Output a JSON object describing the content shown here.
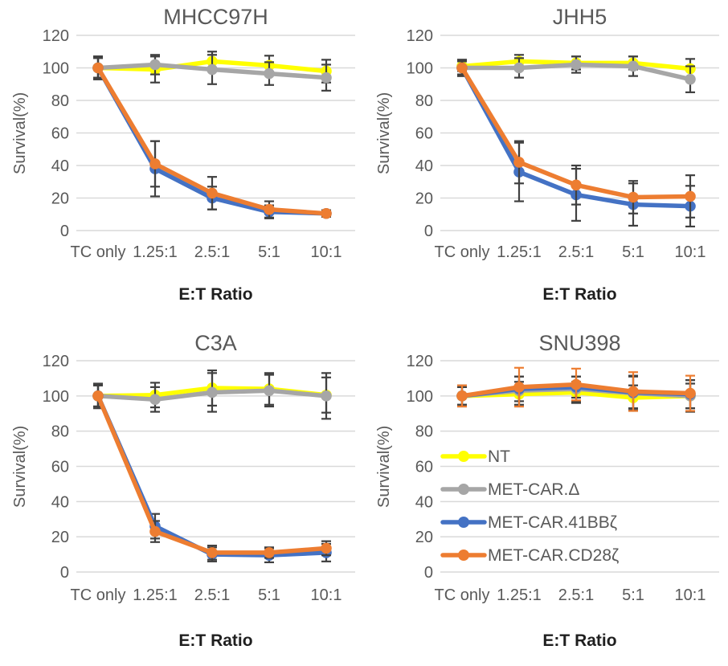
{
  "axes": {
    "ylabel": "Survival(%)",
    "xlabel": "E:T Ratio",
    "yticks": [
      120,
      100,
      80,
      60,
      40,
      20,
      0
    ],
    "categories": [
      "TC only",
      "1.25:1",
      "2.5:1",
      "5:1",
      "10:1"
    ]
  },
  "colors": {
    "yellow": "#FFFF00",
    "gray": "#A6A6A6",
    "blue": "#4472C4",
    "orange": "#ED7D31",
    "grid": "#D9D9D9",
    "text": "#595959",
    "error": "#404040",
    "xlabel_text": "#1F1F1F"
  },
  "legend": {
    "host_chart": "SNU398",
    "position": "inside-bottom-right-panel",
    "entries": [
      {
        "label": "NT",
        "color_key": "yellow"
      },
      {
        "label": "MET-CAR.Δ",
        "color_key": "gray"
      },
      {
        "label": "MET-CAR.41BBζ",
        "color_key": "blue"
      },
      {
        "label": "MET-CAR.CD28ζ",
        "color_key": "orange"
      }
    ]
  },
  "chart_data": [
    {
      "type": "line",
      "title": "MHCC97H",
      "xlabel": "E:T Ratio",
      "ylabel": "Survival(%)",
      "ylim": [
        0,
        120
      ],
      "grid": true,
      "error_bars": true,
      "categories": [
        "TC only",
        "1.25:1",
        "2.5:1",
        "5:1",
        "10:1"
      ],
      "series": [
        {
          "name": "NT",
          "color_key": "yellow",
          "values": [
            100,
            99,
            104,
            101.5,
            98
          ],
          "errors": [
            7,
            8,
            6,
            6,
            7
          ]
        },
        {
          "name": "MET-CAR.Δ",
          "color_key": "gray",
          "values": [
            100,
            102,
            99,
            96.5,
            94
          ],
          "errors": [
            7,
            6,
            9,
            7,
            8
          ]
        },
        {
          "name": "MET-CAR.41BBζ",
          "color_key": "blue",
          "values": [
            100,
            38,
            20,
            11.5,
            10.5
          ],
          "errors": [
            6,
            17,
            7,
            4,
            2
          ]
        },
        {
          "name": "MET-CAR.CD28ζ",
          "color_key": "orange",
          "values": [
            100,
            41,
            23,
            13,
            10.5
          ],
          "errors": [
            7,
            14,
            10,
            5,
            2
          ]
        }
      ]
    },
    {
      "type": "line",
      "title": "JHH5",
      "xlabel": "E:T Ratio",
      "ylabel": "Survival(%)",
      "ylim": [
        0,
        120
      ],
      "grid": true,
      "error_bars": true,
      "categories": [
        "TC only",
        "1.25:1",
        "2.5:1",
        "5:1",
        "10:1"
      ],
      "series": [
        {
          "name": "NT",
          "color_key": "yellow",
          "values": [
            101,
            104,
            103,
            103,
            99.5
          ],
          "errors": [
            3,
            4,
            4,
            4,
            6
          ]
        },
        {
          "name": "MET-CAR.Δ",
          "color_key": "gray",
          "values": [
            100,
            100,
            102,
            101,
            93
          ],
          "errors": [
            5,
            6,
            5,
            6,
            8
          ]
        },
        {
          "name": "MET-CAR.41BBζ",
          "color_key": "blue",
          "values": [
            100,
            36,
            22,
            16,
            15
          ],
          "errors": [
            5,
            18,
            16,
            13,
            12.5
          ]
        },
        {
          "name": "MET-CAR.CD28ζ",
          "color_key": "orange",
          "values": [
            100,
            42,
            28,
            20.5,
            21
          ],
          "errors": [
            4,
            13,
            12,
            10,
            13
          ]
        }
      ]
    },
    {
      "type": "line",
      "title": "C3A",
      "xlabel": "E:T Ratio",
      "ylabel": "Survival(%)",
      "ylim": [
        0,
        120
      ],
      "grid": true,
      "error_bars": true,
      "categories": [
        "TC only",
        "1.25:1",
        "2.5:1",
        "5:1",
        "10:1"
      ],
      "series": [
        {
          "name": "NT",
          "color_key": "yellow",
          "values": [
            100,
            100.5,
            104.5,
            104,
            100.5
          ],
          "errors": [
            6,
            7,
            10,
            9,
            10
          ]
        },
        {
          "name": "MET-CAR.Δ",
          "color_key": "gray",
          "values": [
            100,
            98,
            102,
            103,
            100
          ],
          "errors": [
            7,
            7,
            11,
            9,
            13
          ]
        },
        {
          "name": "MET-CAR.41BBζ",
          "color_key": "blue",
          "values": [
            100,
            26,
            10,
            9.5,
            11
          ],
          "errors": [
            6,
            7,
            4,
            4,
            5
          ]
        },
        {
          "name": "MET-CAR.CD28ζ",
          "color_key": "orange",
          "values": [
            100,
            23,
            11,
            11,
            13.5
          ],
          "errors": [
            6,
            6,
            4,
            3,
            4
          ]
        }
      ]
    },
    {
      "type": "line",
      "title": "SNU398",
      "xlabel": "E:T Ratio",
      "ylabel": "Survival(%)",
      "ylim": [
        0,
        120
      ],
      "grid": true,
      "error_bars": true,
      "legend_inside": true,
      "categories": [
        "TC only",
        "1.25:1",
        "2.5:1",
        "5:1",
        "10:1"
      ],
      "series": [
        {
          "name": "NT",
          "color_key": "yellow",
          "values": [
            100,
            101,
            102,
            99,
            100
          ],
          "errors": [
            6,
            7,
            6,
            7,
            7
          ]
        },
        {
          "name": "MET-CAR.Δ",
          "color_key": "gray",
          "values": [
            100,
            103,
            104,
            101.5,
            100
          ],
          "errors": [
            5,
            8,
            7,
            10,
            9
          ]
        },
        {
          "name": "MET-CAR.41BBζ",
          "color_key": "blue",
          "values": [
            100,
            104,
            105,
            102,
            101
          ],
          "errors": [
            5,
            7,
            6,
            9,
            8
          ]
        },
        {
          "name": "MET-CAR.CD28ζ",
          "color_key": "orange",
          "values": [
            100,
            105,
            106.5,
            102.5,
            101.5
          ],
          "errors": [
            6,
            11,
            9,
            11,
            10
          ],
          "error_color_key": "orange"
        }
      ]
    }
  ]
}
